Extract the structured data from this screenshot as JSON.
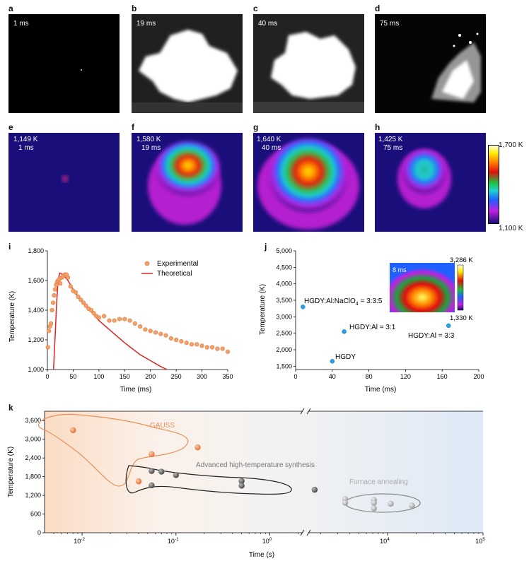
{
  "figure": {
    "top_row": [
      {
        "letter": "a",
        "time": "1 ms"
      },
      {
        "letter": "b",
        "time": "19 ms"
      },
      {
        "letter": "c",
        "time": "40 ms"
      },
      {
        "letter": "d",
        "time": "75 ms"
      }
    ],
    "thermal_row": [
      {
        "letter": "e",
        "temp": "1,149 K",
        "time": "1 ms"
      },
      {
        "letter": "f",
        "temp": "1,580 K",
        "time": "19 ms"
      },
      {
        "letter": "g",
        "temp": "1,640 K",
        "time": "40 ms"
      },
      {
        "letter": "h",
        "temp": "1,425 K",
        "time": "75 ms"
      }
    ],
    "colorbar": {
      "max": "1,700 K",
      "min": "1,100 K"
    },
    "panel_i": {
      "letter": "i",
      "xlabel": "Time (ms)",
      "ylabel": "Temperature (K)",
      "legend": [
        "Experimental",
        "Theoretical"
      ],
      "xticks": [
        "0",
        "50",
        "100",
        "150",
        "200",
        "250",
        "300",
        "350"
      ],
      "yticks": [
        "1,000",
        "1,200",
        "1,400",
        "1,600",
        "1,800"
      ]
    },
    "panel_j": {
      "letter": "j",
      "xlabel": "Time (ms)",
      "ylabel": "Temperature (K)",
      "xticks": [
        "0",
        "40",
        "80",
        "120",
        "160",
        "200"
      ],
      "yticks": [
        "1,500",
        "2,000",
        "2,500",
        "3,000",
        "3,500",
        "4,000",
        "4,500",
        "5,000"
      ],
      "inset_time": "8 ms",
      "inset_max": "3,286 K",
      "inset_min": "1,330 K",
      "labels": [
        "HGDY:Al:NaClO",
        "4",
        " = 3:3:5",
        "HGDY:Al = 3:1",
        "HGDY:Al = 3:3",
        "HGDY"
      ]
    },
    "panel_k": {
      "letter": "k",
      "xlabel": "Time (s)",
      "ylabel": "Temperature (K)",
      "yticks": [
        "0",
        "600",
        "1,200",
        "1,800",
        "2,400",
        "3,000",
        "3,600"
      ],
      "xticks_left": [
        "10",
        "-2",
        "10",
        "-1",
        "10",
        "0"
      ],
      "xticks_right": [
        "10",
        "4",
        "10",
        "5"
      ],
      "group_labels": [
        "GAUSS",
        "Advanced high-temperature synthesis",
        "Furnace annealing"
      ]
    }
  },
  "chart_data": [
    {
      "type": "scatter",
      "panel": "i",
      "xlabel": "Time (ms)",
      "ylabel": "Temperature (K)",
      "xlim": [
        0,
        350
      ],
      "ylim": [
        1000,
        1800
      ],
      "series": [
        {
          "name": "Experimental",
          "x": [
            1,
            3,
            5,
            7,
            9,
            11,
            13,
            15,
            17,
            19,
            21,
            23,
            25,
            28,
            31,
            34,
            37,
            40,
            45,
            50,
            55,
            60,
            65,
            70,
            75,
            80,
            85,
            90,
            95,
            100,
            110,
            120,
            130,
            140,
            150,
            160,
            170,
            180,
            190,
            200,
            210,
            220,
            230,
            240,
            250,
            260,
            270,
            280,
            290,
            300,
            310,
            320,
            330,
            340,
            350
          ],
          "y": [
            1150,
            1260,
            1290,
            1310,
            1400,
            1450,
            1500,
            1540,
            1570,
            1590,
            1600,
            1610,
            1580,
            1620,
            1630,
            1640,
            1640,
            1620,
            1560,
            1530,
            1520,
            1490,
            1470,
            1450,
            1430,
            1410,
            1400,
            1380,
            1360,
            1350,
            1360,
            1330,
            1330,
            1340,
            1340,
            1330,
            1310,
            1290,
            1270,
            1260,
            1250,
            1240,
            1230,
            1210,
            1200,
            1190,
            1180,
            1170,
            1170,
            1160,
            1150,
            1150,
            1140,
            1140,
            1120
          ]
        },
        {
          "name": "Theoretical",
          "x": [
            12,
            14,
            16,
            18,
            20,
            22,
            24,
            30,
            40,
            50,
            60,
            80,
            100,
            120,
            150,
            180,
            200,
            220,
            232
          ],
          "y": [
            1000,
            1150,
            1300,
            1450,
            1560,
            1620,
            1650,
            1640,
            1600,
            1540,
            1490,
            1410,
            1330,
            1270,
            1180,
            1100,
            1060,
            1020,
            1000
          ]
        }
      ]
    },
    {
      "type": "scatter",
      "panel": "j",
      "xlabel": "Time (ms)",
      "ylabel": "Temperature (K)",
      "xlim": [
        0,
        200
      ],
      "ylim": [
        1400,
        5000
      ],
      "series": [
        {
          "x": [
            8,
            53,
            167,
            40
          ],
          "y": [
            3300,
            2550,
            2730,
            1650
          ]
        }
      ]
    },
    {
      "type": "scatter",
      "panel": "k",
      "xlabel": "Time (s)",
      "ylabel": "Temperature (K)",
      "ylim": [
        0,
        3900
      ],
      "series": [
        {
          "name": "GAUSS",
          "x": [
            0.008,
            0.04,
            0.055,
            0.17
          ],
          "y": [
            3290,
            1650,
            2520,
            2740
          ]
        },
        {
          "name": "Advanced high-temperature synthesis",
          "x": [
            0.055,
            0.055,
            0.07,
            0.1,
            0.5,
            0.5,
            3
          ],
          "y": [
            1980,
            1520,
            1960,
            1850,
            1660,
            1510,
            1380
          ]
        },
        {
          "name": "Furnace annealing",
          "x": [
            3600,
            3600,
            7200,
            7200,
            7200,
            10800,
            18000
          ],
          "y": [
            1080,
            960,
            1050,
            960,
            780,
            930,
            870
          ]
        }
      ]
    }
  ]
}
